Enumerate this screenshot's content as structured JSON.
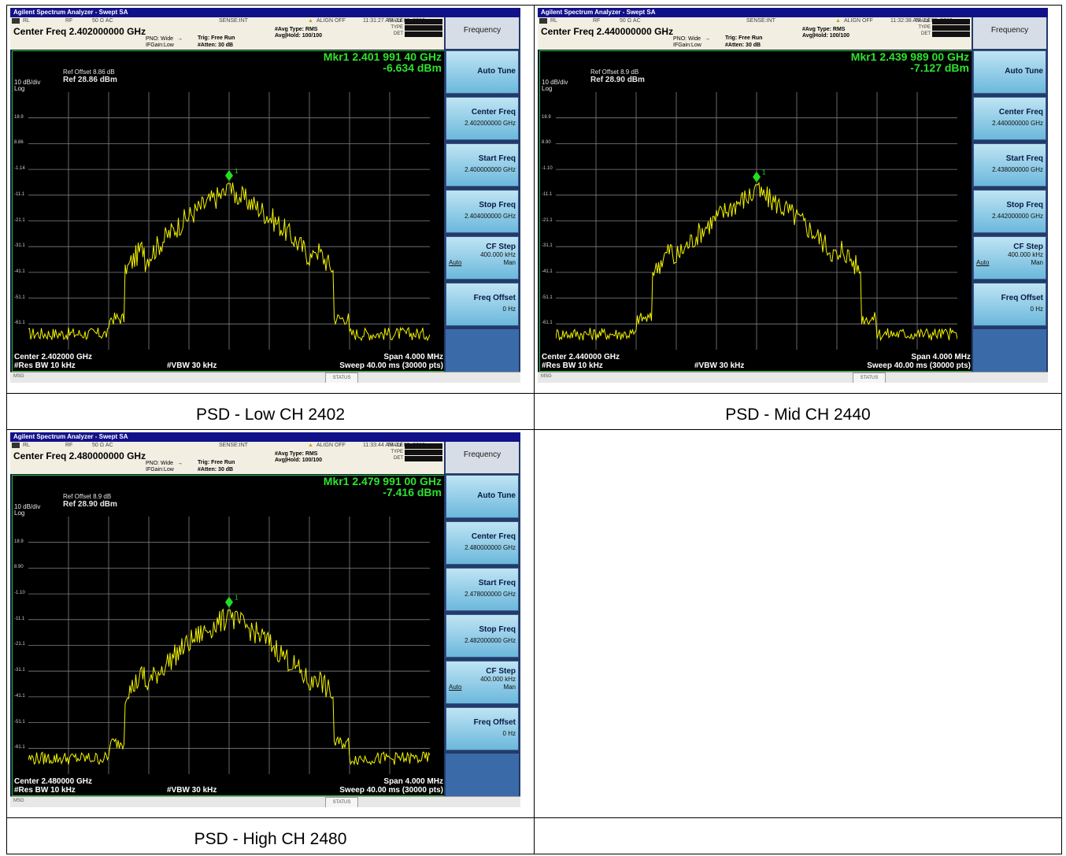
{
  "app_title": "Agilent Spectrum Analyzer - Swept SA",
  "common": {
    "rl": "RL",
    "rf": "RF",
    "impedance": "50 Ω  AC",
    "sense": "SENSE:INT",
    "align": "ALIGN OFF",
    "pno": "PNO: Wide",
    "ifgain": "IFGain:Low",
    "trig": "Trig: Free Run",
    "atten": "#Atten: 30 dB",
    "avg_type": "#Avg Type: RMS",
    "avg_hold": "Avg|Hold: 100/100",
    "trace_label": "TRACE",
    "type_label": "TYPE",
    "det_label": "DET",
    "div": "10 dB/div",
    "log": "Log",
    "rbw": "#Res BW 10 kHz",
    "vbw": "#VBW 30 kHz",
    "span": "Span 4.000 MHz",
    "sweep": "Sweep  40.00 ms (30000 pts)",
    "msg": "MSG",
    "status": "STATUS",
    "menu_title": "Frequency",
    "auto_tune": "Auto Tune",
    "center_freq_label": "Center Freq",
    "start_freq_label": "Start Freq",
    "stop_freq_label": "Stop Freq",
    "cf_step_label": "CF Step",
    "cf_step_value": "400.000 kHz",
    "auto": "Auto",
    "man": "Man",
    "freq_offset_label": "Freq Offset",
    "freq_offset_value": "0 Hz"
  },
  "panels": [
    {
      "time": "11:31:27 AM Jul 03, 2019",
      "center_freq": "Center Freq 2.402000000 GHz",
      "ref_offset": "Ref Offset 8.86 dB",
      "ref_level": "Ref 28.86 dBm",
      "mkr_freq": "Mkr1 2.401 991 40 GHz",
      "mkr_level": "-6.634 dBm",
      "y_ticks": [
        "18.9",
        "8.86",
        "-1.14",
        "-11.1",
        "-21.1",
        "-31.1",
        "-41.1",
        "-51.1",
        "-61.1"
      ],
      "center": "Center 2.402000 GHz",
      "cf_value": "2.402000000 GHz",
      "start_value": "2.400000000 GHz",
      "stop_value": "2.404000000 GHz",
      "caption": "PSD - Low CH 2402",
      "peak_dbm": -6.6
    },
    {
      "time": "11:32:38 AM Jul 03, 2019",
      "center_freq": "Center Freq 2.440000000 GHz",
      "ref_offset": "Ref Offset 8.9 dB",
      "ref_level": "Ref 28.90 dBm",
      "mkr_freq": "Mkr1 2.439 989 00 GHz",
      "mkr_level": "-7.127 dBm",
      "y_ticks": [
        "18.9",
        "8.90",
        "-1.10",
        "-11.1",
        "-21.1",
        "-31.1",
        "-41.1",
        "-51.1",
        "-61.1"
      ],
      "center": "Center 2.440000 GHz",
      "cf_value": "2.440000000 GHz",
      "start_value": "2.438000000 GHz",
      "stop_value": "2.442000000 GHz",
      "caption": "PSD -  Mid CH 2440",
      "peak_dbm": -7.1
    },
    {
      "time": "11:33:44 AM Jul 03, 2019",
      "center_freq": "Center Freq 2.480000000 GHz",
      "ref_offset": "Ref Offset 8.9 dB",
      "ref_level": "Ref 28.90 dBm",
      "mkr_freq": "Mkr1 2.479 991 00 GHz",
      "mkr_level": "-7.416 dBm",
      "y_ticks": [
        "18.9",
        "8.90",
        "-1.10",
        "-11.1",
        "-21.1",
        "-31.1",
        "-41.1",
        "-51.1",
        "-61.1"
      ],
      "center": "Center 2.480000 GHz",
      "cf_value": "2.480000000 GHz",
      "start_value": "2.478000000 GHz",
      "stop_value": "2.482000000 GHz",
      "caption": "PSD -  High CH 2480",
      "peak_dbm": -7.4
    }
  ],
  "colors": {
    "trace": "#f2f200",
    "marker": "#22dd22",
    "grid": "#808080",
    "plot_border": "#2cc02c"
  }
}
